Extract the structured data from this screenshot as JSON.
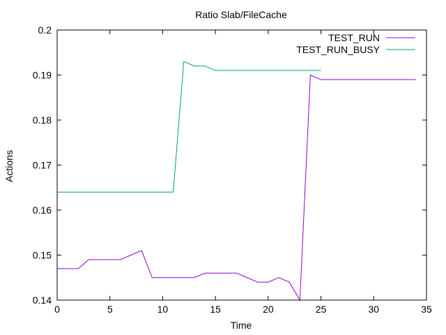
{
  "chart_data": {
    "type": "line",
    "title": "Ratio Slab/FileCache",
    "xlabel": "Time",
    "ylabel": "Actions",
    "xlim": [
      0,
      35
    ],
    "ylim": [
      0.14,
      0.2
    ],
    "xticks": [
      0,
      5,
      10,
      15,
      20,
      25,
      30,
      35
    ],
    "yticks": [
      0.14,
      0.15,
      0.16,
      0.17,
      0.18,
      0.19,
      0.2
    ],
    "xtick_labels": [
      "0",
      "5",
      "10",
      "15",
      "20",
      "25",
      "30",
      "35"
    ],
    "ytick_labels": [
      "0.14",
      "0.15",
      "0.16",
      "0.17",
      "0.18",
      "0.19",
      "0.2"
    ],
    "grid": false,
    "legend_position": "top-right",
    "series": [
      {
        "name": "TEST_RUN",
        "color": "#9400d3",
        "x": [
          0,
          1,
          2,
          3,
          4,
          5,
          6,
          7,
          8,
          9,
          10,
          11,
          12,
          13,
          14,
          15,
          16,
          17,
          18,
          19,
          20,
          21,
          22,
          23,
          24,
          25,
          26,
          27,
          28,
          29,
          30,
          31,
          32,
          33,
          34
        ],
        "y": [
          0.147,
          0.147,
          0.147,
          0.149,
          0.149,
          0.149,
          0.149,
          0.15,
          0.151,
          0.145,
          0.145,
          0.145,
          0.145,
          0.145,
          0.146,
          0.146,
          0.146,
          0.146,
          0.145,
          0.144,
          0.144,
          0.145,
          0.144,
          0.14,
          0.19,
          0.189,
          0.189,
          0.189,
          0.189,
          0.189,
          0.189,
          0.189,
          0.189,
          0.189,
          0.189
        ]
      },
      {
        "name": "TEST_RUN_BUSY",
        "color": "#009e73",
        "x": [
          0,
          1,
          2,
          3,
          4,
          5,
          6,
          7,
          8,
          9,
          10,
          11,
          12,
          13,
          14,
          15,
          16,
          17,
          18,
          19,
          20,
          21,
          22,
          23,
          24,
          25
        ],
        "y": [
          0.164,
          0.164,
          0.164,
          0.164,
          0.164,
          0.164,
          0.164,
          0.164,
          0.164,
          0.164,
          0.164,
          0.164,
          0.193,
          0.192,
          0.192,
          0.191,
          0.191,
          0.191,
          0.191,
          0.191,
          0.191,
          0.191,
          0.191,
          0.191,
          0.191,
          0.191
        ]
      }
    ]
  }
}
